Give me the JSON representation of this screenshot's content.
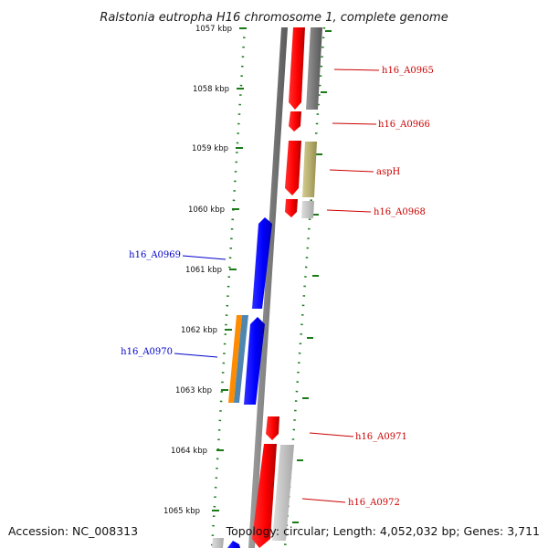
{
  "title": "Ralstonia eutropha H16 chromosome 1, complete genome",
  "footer": {
    "accession": "Accession: NC_008313",
    "summary": "Topology: circular; Length: 4,052,032 bp; Genes: 3,711"
  },
  "ticks": [
    "1057 kbp",
    "1058 kbp",
    "1059 kbp",
    "1060 kbp",
    "1061 kbp",
    "1062 kbp",
    "1063 kbp",
    "1064 kbp",
    "1065 kbp"
  ],
  "genes": {
    "forward": [
      "h16_A0965",
      "h16_A0966",
      "aspH",
      "h16_A0968",
      "h16_A0971",
      "h16_A0972"
    ],
    "reverse": [
      "h16_A0969",
      "h16_A0970"
    ]
  },
  "colors": {
    "forward_gene": "#ff0000",
    "reverse_gene": "#0000ff",
    "forward_label": "#cc0000",
    "reverse_label": "#0000cc",
    "backbone": "#808080",
    "tick": "#1a7a1a",
    "cds_gray": "#888888",
    "cds_olive": "#b8b070",
    "cds_orange": "#ff8c00",
    "cds_steel": "#4f86b0"
  }
}
